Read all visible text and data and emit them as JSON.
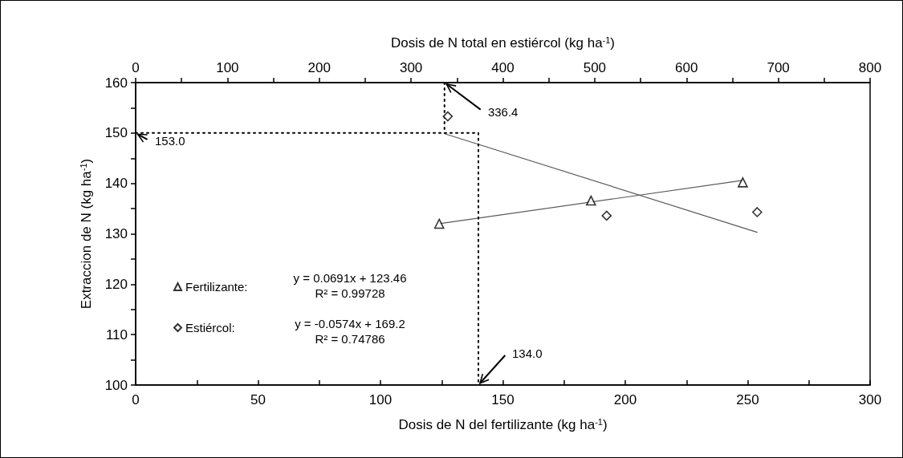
{
  "chart_data": {
    "type": "scatter",
    "xlabel": "Dosis de N del fertilizante (kg ha$^{-1}$)",
    "x2label": "Dosis de N total en estiércol (kg ha$^{-1}$)",
    "ylabel": "Extraccion de N (kg ha$^{-1}$)",
    "xlim": [
      0,
      300
    ],
    "xticks": [
      0,
      {
        "value": 25,
        "label": null
      },
      50,
      {
        "value": 75,
        "label": null
      },
      100,
      {
        "value": 125,
        "label": null
      },
      150,
      {
        "value": 175,
        "label": null
      },
      200,
      {
        "value": 225,
        "label": null
      },
      250,
      {
        "value": 275,
        "label": null
      },
      300
    ],
    "x2lim": [
      0,
      800
    ],
    "x2ticks": [
      0,
      {
        "value": 50,
        "label": null
      },
      100,
      {
        "value": 150,
        "label": null
      },
      200,
      {
        "value": 250,
        "label": null
      },
      300,
      {
        "value": 350,
        "label": null
      },
      400,
      {
        "value": 450,
        "label": null
      },
      500,
      {
        "value": 550,
        "label": null
      },
      600,
      {
        "value": 650,
        "label": null
      },
      700,
      {
        "value": 750,
        "label": null
      },
      800
    ],
    "ylim": [
      100,
      160
    ],
    "yticks": [
      100,
      {
        "value": 105,
        "label": null
      },
      110,
      {
        "value": 115,
        "label": null
      },
      120,
      {
        "value": 125,
        "label": null
      },
      130,
      {
        "value": 135,
        "label": null
      },
      140,
      {
        "value": 145,
        "label": null
      },
      150,
      {
        "value": 155,
        "label": null
      },
      160
    ],
    "grid": false,
    "legend": "left",
    "series": [
      {
        "name": "Fertilizante:",
        "marker": "triangle",
        "color": "#000000",
        "x": [
          124,
          186,
          248
        ],
        "values": [
          132.0,
          136.6,
          140.2
        ]
      },
      {
        "name": "Estiércol:",
        "marker": "diamond",
        "color": "#000000",
        "axis": "x2",
        "x": [
          340,
          513,
          677
        ],
        "values": [
          153.3,
          133.6,
          134.3
        ]
      },
      {
        "type": "line",
        "marker": "none",
        "line_style": "solid",
        "color": "#595959",
        "x": [
          124,
          248
        ],
        "values": [
          132.0,
          140.6
        ]
      },
      {
        "type": "line",
        "marker": "none",
        "line_style": "solid",
        "color": "#595959",
        "axis": "x2",
        "x": [
          336,
          677
        ],
        "values": [
          149.9,
          130.3
        ]
      },
      {
        "type": "line",
        "marker": "none",
        "line_style": "dotted",
        "color": "#000000",
        "x": [
          0,
          140,
          140
        ],
        "values": [
          150,
          150,
          100
        ]
      },
      {
        "type": "line",
        "marker": "none",
        "line_style": "dotted",
        "color": "#000000",
        "axis": "x2",
        "x": [
          336.4,
          336.4
        ],
        "values": [
          160,
          150
        ]
      }
    ],
    "annotations": [
      {
        "text": "153.0",
        "x": 0,
        "y": 150
      },
      {
        "text": "336.4",
        "x": 126.2,
        "y": 160
      },
      {
        "text": "134.0",
        "x": 140,
        "y": 100
      },
      "y = 0.0691x + 123.46\nR² = 0.99728",
      "y = -0.0574x + 169.2\nR² = 0.74786"
    ]
  }
}
